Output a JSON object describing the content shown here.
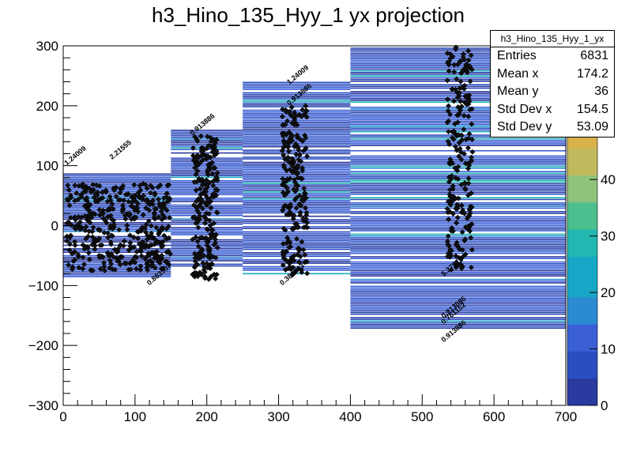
{
  "chart_data": {
    "type": "scatter",
    "title": "h3_Hino_135_Hyy_1 yx projection",
    "xlim": [
      0,
      700
    ],
    "ylim": [
      -300,
      300
    ],
    "zlim": [
      0,
      48
    ],
    "x_ticks": [
      "0",
      "100",
      "200",
      "300",
      "400",
      "500",
      "600",
      "700"
    ],
    "y_ticks": [
      "−300",
      "−200",
      "−100",
      "0",
      "100",
      "200",
      "300"
    ],
    "z_ticks": [
      "0",
      "10",
      "20",
      "30",
      "40"
    ],
    "x_bins": [
      {
        "x0": 0,
        "x1": 150,
        "y0": -85,
        "y1": 90
      },
      {
        "x0": 150,
        "x1": 250,
        "y0": -75,
        "y1": 160
      },
      {
        "x0": 250,
        "x1": 400,
        "y0": -80,
        "y1": 240
      },
      {
        "x0": 400,
        "x1": 700,
        "y0": -172,
        "y1": 300
      }
    ],
    "point_clusters": [
      {
        "x": [
          5,
          150
        ],
        "y": [
          -75,
          70
        ]
      },
      {
        "x": [
          180,
          215
        ],
        "y": [
          -90,
          150
        ]
      },
      {
        "x": [
          305,
          340
        ],
        "y": [
          -85,
          200
        ]
      },
      {
        "x": [
          535,
          570
        ],
        "y": [
          -75,
          300
        ]
      }
    ],
    "annotations": [
      {
        "text": "1.24009",
        "x": 5,
        "y": 100
      },
      {
        "text": "2.21555",
        "x": 68,
        "y": 110
      },
      {
        "text": "0.913886",
        "x": 180,
        "y": 150
      },
      {
        "text": "1.24009",
        "x": 315,
        "y": 235
      },
      {
        "text": "0.913886",
        "x": 315,
        "y": 200
      },
      {
        "text": "0.863507",
        "x": 120,
        "y": -100
      },
      {
        "text": "0.381463",
        "x": 305,
        "y": -100
      },
      {
        "text": "0.913886",
        "x": 530,
        "y": -155
      },
      {
        "text": "0.761152",
        "x": 530,
        "y": -165
      },
      {
        "text": "0.913886",
        "x": 530,
        "y": -195
      },
      {
        "text": "5.37871",
        "x": 530,
        "y": -85
      }
    ],
    "stats": {
      "name": "h3_Hino_135_Hyy_1_yx",
      "entries": {
        "label": "Entries",
        "value": "6831"
      },
      "mean_x": {
        "label": "Mean x",
        "value": "174.2"
      },
      "mean_y": {
        "label": "Mean y",
        "value": "36"
      },
      "std_x": {
        "label": "Std Dev x",
        "value": "154.5"
      },
      "std_y": {
        "label": "Std Dev y",
        "value": "53.09"
      }
    },
    "palette": [
      "#2a3a9e",
      "#2b4dc0",
      "#3a5fd6",
      "#2c8ad0",
      "#17a8c7",
      "#22b7b0",
      "#4cbf8e",
      "#8fc27a",
      "#c2b95c",
      "#d8b14b"
    ]
  }
}
